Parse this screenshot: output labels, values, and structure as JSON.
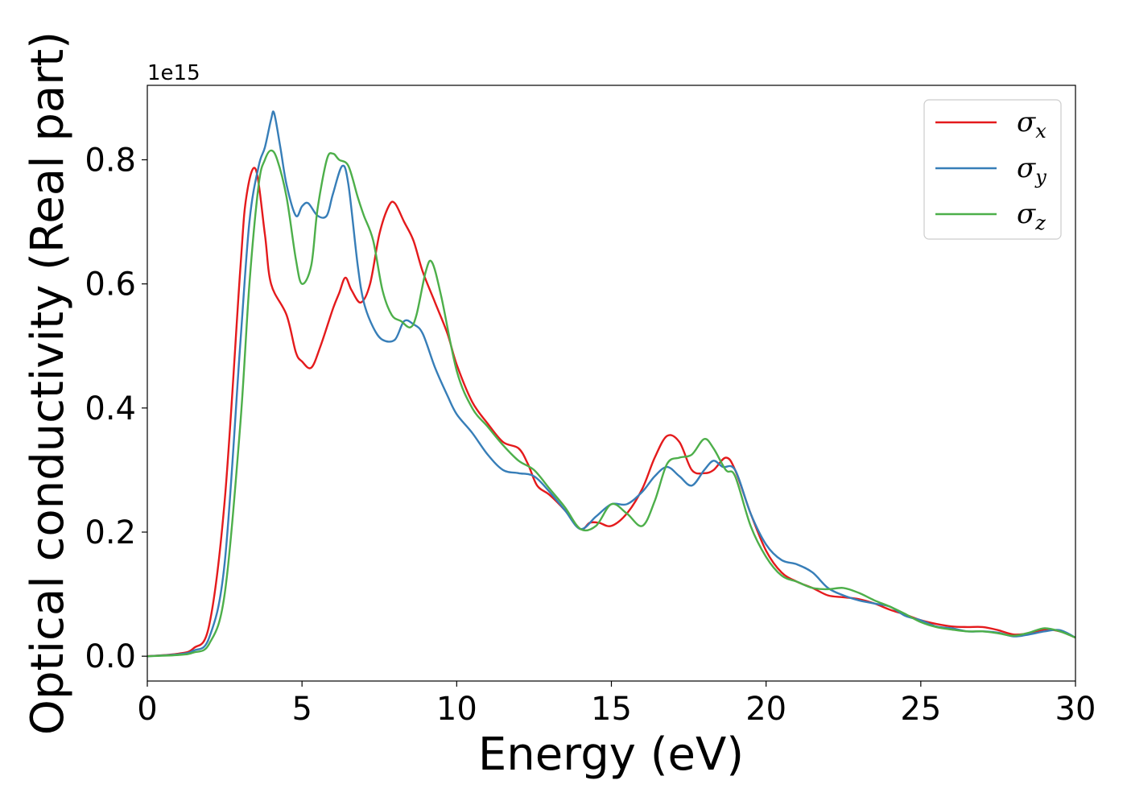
{
  "chart_data": {
    "type": "line",
    "xlabel": "Energy (eV)",
    "ylabel": "Optical conductivity (Real part)",
    "y_offset_label": "1e15",
    "xlim": [
      0,
      30
    ],
    "ylim": [
      -0.04,
      0.92
    ],
    "xticks": [
      0,
      5,
      10,
      15,
      20,
      25,
      30
    ],
    "xtick_labels": [
      "0",
      "5",
      "10",
      "15",
      "20",
      "25",
      "30"
    ],
    "yticks": [
      0.0,
      0.2,
      0.4,
      0.6,
      0.8
    ],
    "ytick_labels": [
      "0.0",
      "0.2",
      "0.4",
      "0.6",
      "0.8"
    ],
    "grid": false,
    "legend_position": "top-right",
    "series": [
      {
        "name": "σx",
        "symbol": "σ",
        "subscript": "x",
        "color": "#e41a1c",
        "x": [
          0,
          1,
          1.5,
          2,
          2.5,
          3,
          3.2,
          3.5,
          3.8,
          4.0,
          4.5,
          4.8,
          5.0,
          5.3,
          5.6,
          6.0,
          6.2,
          6.4,
          6.6,
          6.9,
          7.2,
          7.5,
          7.8,
          8.0,
          8.3,
          8.6,
          8.9,
          9.3,
          9.7,
          10.0,
          10.5,
          11.0,
          11.5,
          12.0,
          12.3,
          12.6,
          13.0,
          13.5,
          14.0,
          14.3,
          14.6,
          15.0,
          15.5,
          16.0,
          16.4,
          16.8,
          17.2,
          17.6,
          18.0,
          18.3,
          18.7,
          19.0,
          19.5,
          20.0,
          20.5,
          21.0,
          21.5,
          22.0,
          22.5,
          23.0,
          23.5,
          24.0,
          24.5,
          25.0,
          25.5,
          26.0,
          26.5,
          27.0,
          27.5,
          28.0,
          28.5,
          29.0,
          29.5,
          30.0
        ],
        "y": [
          0.0,
          0.004,
          0.013,
          0.05,
          0.25,
          0.62,
          0.74,
          0.785,
          0.68,
          0.6,
          0.55,
          0.49,
          0.475,
          0.465,
          0.5,
          0.56,
          0.585,
          0.61,
          0.59,
          0.57,
          0.6,
          0.68,
          0.725,
          0.73,
          0.7,
          0.67,
          0.62,
          0.57,
          0.52,
          0.47,
          0.41,
          0.375,
          0.345,
          0.335,
          0.31,
          0.275,
          0.26,
          0.235,
          0.205,
          0.215,
          0.215,
          0.21,
          0.23,
          0.27,
          0.32,
          0.355,
          0.345,
          0.3,
          0.295,
          0.3,
          0.32,
          0.3,
          0.23,
          0.17,
          0.135,
          0.12,
          0.11,
          0.098,
          0.095,
          0.092,
          0.085,
          0.075,
          0.067,
          0.058,
          0.052,
          0.048,
          0.047,
          0.047,
          0.042,
          0.035,
          0.037,
          0.043,
          0.04,
          0.03
        ]
      },
      {
        "name": "σy",
        "symbol": "σ",
        "subscript": "y",
        "color": "#377eb8",
        "x": [
          0,
          1,
          1.5,
          2,
          2.5,
          3,
          3.3,
          3.6,
          3.8,
          4.0,
          4.1,
          4.3,
          4.5,
          4.8,
          5.0,
          5.2,
          5.5,
          5.8,
          6.0,
          6.3,
          6.5,
          6.8,
          7.0,
          7.3,
          7.6,
          8.0,
          8.3,
          8.6,
          8.9,
          9.3,
          9.7,
          10.0,
          10.5,
          11.0,
          11.5,
          12.0,
          12.5,
          13.0,
          13.5,
          14.0,
          14.5,
          15.0,
          15.5,
          16.0,
          16.4,
          16.8,
          17.2,
          17.6,
          18.0,
          18.3,
          18.6,
          19.0,
          19.5,
          20.0,
          20.5,
          21.0,
          21.5,
          22.0,
          22.5,
          23.0,
          23.5,
          24.0,
          24.5,
          25.0,
          25.5,
          26.0,
          26.5,
          27.0,
          27.5,
          28.0,
          28.5,
          29.0,
          29.5,
          30.0
        ],
        "y": [
          0.0,
          0.003,
          0.009,
          0.03,
          0.15,
          0.5,
          0.7,
          0.79,
          0.82,
          0.865,
          0.875,
          0.82,
          0.76,
          0.71,
          0.725,
          0.73,
          0.71,
          0.71,
          0.745,
          0.79,
          0.76,
          0.63,
          0.57,
          0.53,
          0.51,
          0.51,
          0.54,
          0.535,
          0.52,
          0.465,
          0.42,
          0.39,
          0.36,
          0.325,
          0.3,
          0.295,
          0.29,
          0.265,
          0.235,
          0.205,
          0.225,
          0.245,
          0.245,
          0.265,
          0.29,
          0.305,
          0.29,
          0.275,
          0.3,
          0.315,
          0.305,
          0.3,
          0.23,
          0.18,
          0.155,
          0.148,
          0.135,
          0.11,
          0.098,
          0.09,
          0.085,
          0.08,
          0.065,
          0.058,
          0.048,
          0.045,
          0.04,
          0.04,
          0.038,
          0.032,
          0.035,
          0.04,
          0.042,
          0.03
        ]
      },
      {
        "name": "σz",
        "symbol": "σ",
        "subscript": "z",
        "color": "#4daf4a",
        "x": [
          0,
          1,
          1.5,
          2,
          2.5,
          3,
          3.3,
          3.6,
          3.8,
          4.0,
          4.2,
          4.5,
          4.8,
          5.0,
          5.3,
          5.5,
          5.8,
          6.0,
          6.2,
          6.5,
          6.8,
          7.0,
          7.3,
          7.6,
          7.9,
          8.2,
          8.5,
          8.7,
          9.0,
          9.2,
          9.5,
          10.0,
          10.5,
          11.0,
          11.5,
          12.0,
          12.5,
          13.0,
          13.5,
          14.0,
          14.5,
          15.0,
          15.5,
          16.0,
          16.4,
          16.8,
          17.2,
          17.6,
          18.0,
          18.3,
          18.7,
          19.0,
          19.5,
          20.0,
          20.5,
          21.0,
          21.5,
          22.0,
          22.5,
          23.0,
          23.5,
          24.0,
          24.5,
          25.0,
          25.5,
          26.0,
          26.5,
          27.0,
          27.5,
          28.0,
          28.5,
          29.0,
          29.5,
          30.0
        ],
        "y": [
          0.0,
          0.002,
          0.006,
          0.02,
          0.1,
          0.37,
          0.6,
          0.76,
          0.8,
          0.815,
          0.8,
          0.74,
          0.64,
          0.6,
          0.63,
          0.72,
          0.8,
          0.81,
          0.8,
          0.79,
          0.74,
          0.71,
          0.67,
          0.59,
          0.55,
          0.54,
          0.53,
          0.55,
          0.62,
          0.635,
          0.58,
          0.46,
          0.4,
          0.37,
          0.34,
          0.315,
          0.3,
          0.27,
          0.24,
          0.205,
          0.21,
          0.245,
          0.23,
          0.21,
          0.25,
          0.31,
          0.32,
          0.325,
          0.35,
          0.335,
          0.3,
          0.29,
          0.21,
          0.16,
          0.13,
          0.12,
          0.11,
          0.108,
          0.11,
          0.102,
          0.09,
          0.08,
          0.068,
          0.055,
          0.047,
          0.043,
          0.04,
          0.04,
          0.037,
          0.033,
          0.038,
          0.045,
          0.04,
          0.03
        ]
      }
    ]
  }
}
